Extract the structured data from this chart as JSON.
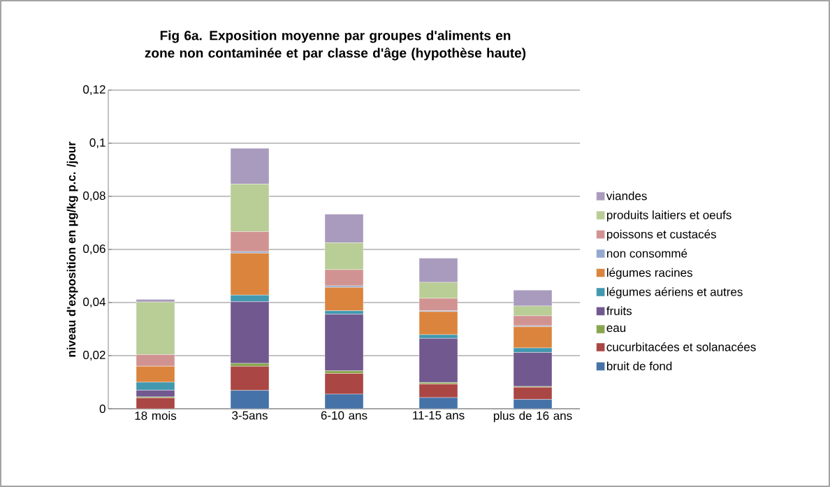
{
  "chart_data": {
    "type": "bar",
    "stacked": true,
    "title": "Fig 6a. Exposition  moyenne par groupes d'aliments en zone non contaminée et par classe d'âge (hypothèse haute)",
    "ylabel": "niveau d'exposition en µg/kg p.c. /jour",
    "categories": [
      "18 mois",
      "3-5ans",
      "6-10 ans",
      "11-15 ans",
      "plus de 16 ans"
    ],
    "ylim": [
      0,
      0.12
    ],
    "yticks": [
      0,
      {
        "value": 0.02,
        "label": "0,02"
      },
      {
        "value": 0.04,
        "label": "0,04"
      },
      {
        "value": 0.06,
        "label": "0,06"
      },
      {
        "value": 0.08,
        "label": "0,08"
      },
      {
        "value": 0.1,
        "label": "0,1"
      },
      {
        "value": 0.12,
        "label": "0,12"
      }
    ],
    "grid": "y",
    "legend": "right",
    "series": [
      {
        "name": "bruit de fond",
        "color": "#4572a7",
        "values": [
          0,
          0.0069,
          0.0055,
          0.0042,
          0.0035
        ]
      },
      {
        "name": "cucurbitacées et solanacées",
        "color": "#aa4643",
        "values": [
          0.0041,
          0.0091,
          0.0078,
          0.0051,
          0.0046
        ]
      },
      {
        "name": "eau",
        "color": "#89a54e",
        "values": [
          0.0004,
          0.0011,
          0.001,
          0.0006,
          0.0003
        ]
      },
      {
        "name": "fruits",
        "color": "#71588f",
        "values": [
          0.0025,
          0.0232,
          0.0213,
          0.0166,
          0.0128
        ]
      },
      {
        "name": "légumes aériens et autres",
        "color": "#4198af",
        "values": [
          0.003,
          0.0025,
          0.0013,
          0.0014,
          0.0017
        ]
      },
      {
        "name": "légumes racines",
        "color": "#db843d",
        "values": [
          0.006,
          0.0158,
          0.0088,
          0.0087,
          0.008
        ]
      },
      {
        "name": "non consommé",
        "color": "#93a9cf",
        "values": [
          0,
          0.0006,
          0.0006,
          0.0003,
          0.0004
        ]
      },
      {
        "name": "poissons et custacés",
        "color": "#d19392",
        "values": [
          0.0044,
          0.0075,
          0.0061,
          0.0047,
          0.0037
        ]
      },
      {
        "name": "produits laitiers et oeufs",
        "color": "#b9cd96",
        "values": [
          0.0198,
          0.0179,
          0.0101,
          0.006,
          0.0037
        ]
      },
      {
        "name": "viandes",
        "color": "#a99bbd",
        "values": [
          0.001,
          0.0135,
          0.0108,
          0.0091,
          0.006
        ]
      }
    ]
  }
}
